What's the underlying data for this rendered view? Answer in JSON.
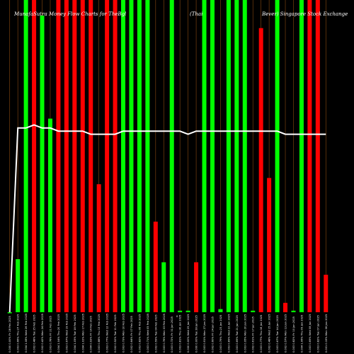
{
  "chart_data": {
    "type": "bar",
    "title": "MunafaSutra Money Flow Charts for TheBgl (Thai Beverage Pcl) SGX Singapore Stock Exchange",
    "title_parts": {
      "left": "MunafaSutra Money Flow Charts for TheBgl",
      "middle": "(Thai",
      "right": "Bever) Singapore Stock Exchange"
    },
    "x_label_marker": "0",
    "ylim": [
      0,
      100
    ],
    "colors": {
      "up": "#00ff00",
      "down": "#ff0000",
      "line": "#ffffff",
      "grid": "#8a4a10",
      "background": "#000000"
    },
    "categories": [
      "Fri 28 Feb 2025",
      "Thu 27 Feb 2025",
      "Wed 26 Feb 2025",
      "Tue 25 Feb 2025",
      "Mon 24 Feb 2025",
      "Fri 21 Feb 2025",
      "Thu 20 Feb 2025",
      "Wed 19 Feb 2025",
      "Tue 18 Feb 2025",
      "Mon 17 Feb 2025",
      "Fri 14 Feb 2025",
      "Thu 13 Feb 2025",
      "Wed 12 Feb 2025",
      "Tue 11 Feb 2025",
      "Mon 10 Feb 2025",
      "Fri 07 Feb 2025",
      "Thu 06 Feb 2025",
      "Wed 05 Feb 2025",
      "Tue 04 Feb 2025",
      "Mon 03 Feb 2025",
      "Fri 31 Jan 2025",
      "Thu 30 Jan 2025",
      "Wed 29 Jan 2025",
      "Tue 28 Jan 2025",
      "Mon 27 Jan 2025",
      "Fri 24 Jan 2025",
      "Thu 23 Jan 2025",
      "Wed 22 Jan 2025",
      "Tue 21 Jan 2025",
      "Mon 20 Jan 2025",
      "Fri 17 Jan 2025",
      "Thu 16 Jan 2025",
      "Wed 15 Jan 2025",
      "Tue 14 Jan 2025",
      "Mon 13 Jan 2025",
      "Fri 10 Jan 2025",
      "Thu 09 Jan 2025",
      "Wed 08 Jan 2025",
      "Tue 07 Jan 2025",
      "Mon 06 Jan 2025"
    ],
    "tick_labels": [
      "0.000 0.00%",
      "0.003 0.66%",
      "0.004 1.08%",
      "0.002 0.48%",
      "0.002 0.42%",
      "0.003 0.78%",
      "0.004 1.04%",
      "0.003 0.67%",
      "0.004 1.05%",
      "0.004 1.02%",
      "0.004 0.93%",
      "0.003 0.88%",
      "0.003 0.77%",
      "0.002 0.52%",
      "0.003 0.73%",
      "0.002 0.64%",
      "0.003 0.82%",
      "0.003 0.71%",
      "0.002 0.59%",
      "0.003 0.76%",
      "0.003 0.72%",
      "0.003 0.81%",
      "0.000 0.00%",
      "0.000 0.00%",
      "0.003 0.91%",
      "0.002 0.60%",
      "0.003 0.79%",
      "0.003 0.89%",
      "0.003 0.69%",
      "0.003 0.95%",
      "0.002 0.61%",
      "0.003 0.77%",
      "0.002 0.48%",
      "0.003 0.67%",
      "0.002 0.57%",
      "0.003 0.82%",
      "0.004 1.06%",
      "0.003 0.69%",
      "0.003 0.82%",
      "0.001 0.19%"
    ],
    "series": [
      {
        "name": "flow",
        "values": [
          0,
          17,
          100,
          100,
          95,
          62,
          100,
          100,
          100,
          100,
          100,
          41,
          100,
          100,
          100,
          100,
          100,
          100,
          29,
          16,
          100,
          0.5,
          0.5,
          16,
          100,
          100,
          1,
          100,
          100,
          100,
          0.5,
          91,
          43,
          100,
          3,
          0.5,
          100,
          100,
          100,
          12
        ],
        "direction": [
          "up",
          "up",
          "up",
          "down",
          "up",
          "up",
          "down",
          "down",
          "down",
          "down",
          "down",
          "down",
          "down",
          "down",
          "up",
          "up",
          "up",
          "up",
          "down",
          "up",
          "up",
          "up",
          "up",
          "down",
          "up",
          "up",
          "up",
          "up",
          "up",
          "up",
          "up",
          "down",
          "down",
          "up",
          "down",
          "up",
          "up",
          "down",
          "red",
          "red"
        ]
      },
      {
        "name": "price",
        "values": [
          0,
          59,
          59,
          60,
          59,
          59,
          58,
          58,
          58,
          58,
          57,
          57,
          57,
          57,
          58,
          58,
          58,
          58,
          58,
          58,
          58,
          58,
          57,
          58,
          58,
          58,
          58,
          58,
          58,
          58,
          58,
          58,
          58,
          58,
          57,
          57,
          57,
          57,
          57,
          57
        ]
      }
    ]
  }
}
